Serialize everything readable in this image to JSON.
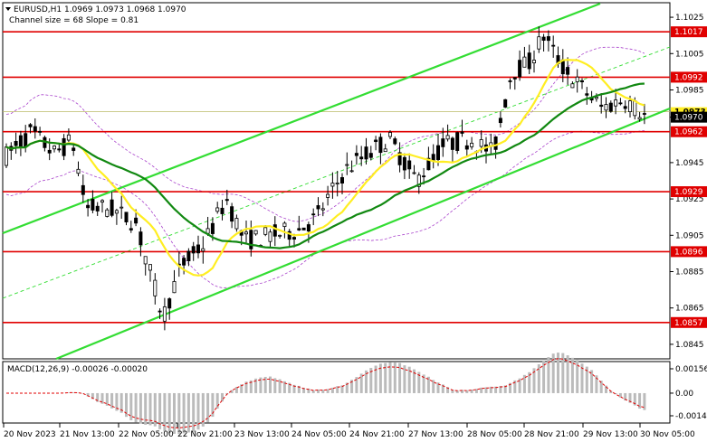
{
  "header": {
    "symbol_line": "EURUSD,H1  1.0969 1.0973 1.0968 1.0970",
    "channel_line": "Channel size = 68 Slope = 0.81"
  },
  "macd": {
    "label": "MACD(12,26,9) -0.00026 -0.00020",
    "ticks": [
      "0.00156",
      "0.00",
      "-0.00145"
    ]
  },
  "colors": {
    "level_line": "#e00000",
    "level_tag_bg": "#e00000",
    "channel": "#33dd33",
    "ma_fast": "#ffee22",
    "ma_slow": "#118811",
    "bollinger": "#aa44cc",
    "macd_hist": "#bbbbbb",
    "macd_signal": "#e00000",
    "current_price_bg": "#000000",
    "prev_price_bg": "#ffee22"
  },
  "chart_data": {
    "type": "candlestick",
    "y_range": [
      1.0837,
      1.1033
    ],
    "y_ticks": [
      "1.1025",
      "1.1005",
      "1.0985",
      "1.0970",
      "1.0945",
      "1.0925",
      "1.0905",
      "1.0885",
      "1.0865",
      "1.0845"
    ],
    "x_labels": [
      "20 Nov 2023",
      "21 Nov 13:00",
      "22 Nov 05:00",
      "22 Nov 21:00",
      "23 Nov 13:00",
      "24 Nov 05:00",
      "24 Nov 21:00",
      "27 Nov 13:00",
      "28 Nov 05:00",
      "28 Nov 21:00",
      "29 Nov 13:00",
      "30 Nov 05:00"
    ],
    "levels": [
      {
        "value": 1.1017,
        "label": "1.1017"
      },
      {
        "value": 1.0992,
        "label": "1.0992"
      },
      {
        "value": 1.0962,
        "label": "1.0962"
      },
      {
        "value": 1.0929,
        "label": "1.0929"
      },
      {
        "value": 1.0896,
        "label": "1.0896"
      },
      {
        "value": 1.0857,
        "label": "1.0857"
      }
    ],
    "current_price": {
      "value": 1.097,
      "label": "1.0970"
    },
    "prev_price": {
      "value": 1.0973,
      "label": "1.0973"
    }
  }
}
